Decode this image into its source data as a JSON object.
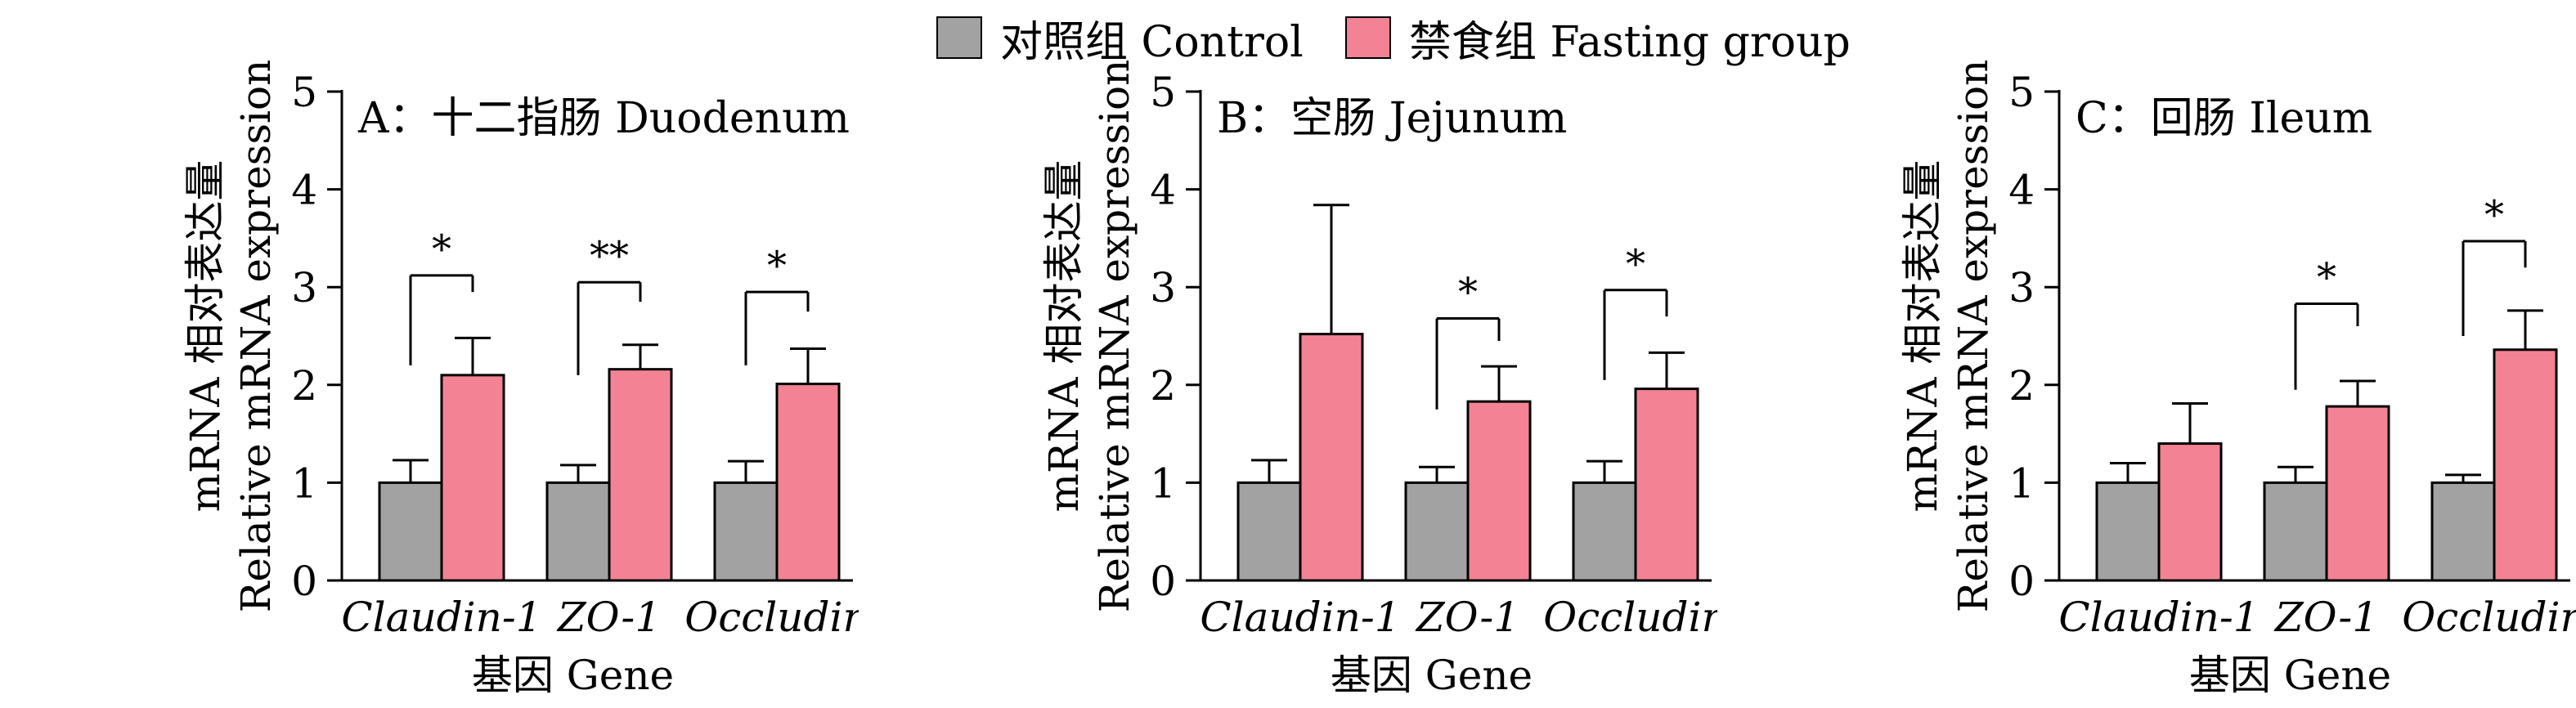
{
  "legend": {
    "control_label": "对照组 Control",
    "fasting_label": "禁食组 Fasting group"
  },
  "colors": {
    "control": "#a2a2a2",
    "fasting": "#f38394",
    "stroke": "#000000"
  },
  "chart_data": [
    {
      "type": "bar",
      "panel_label": "A：十二指肠 Duodenum",
      "ylabel_cn": "mRNA 相对表达量",
      "ylabel_en": "Relative mRNA expression",
      "xlabel": "基因 Gene",
      "ylim": [
        0,
        5
      ],
      "yticks": [
        "0",
        "1",
        "2",
        "3",
        "4",
        "5"
      ],
      "categories": [
        "Claudin-1",
        "ZO-1",
        "Occludin"
      ],
      "series": [
        {
          "name": "对照组 Control",
          "values": [
            1.0,
            1.0,
            1.0
          ],
          "errors": [
            0.23,
            0.18,
            0.22
          ]
        },
        {
          "name": "禁食组 Fasting group",
          "values": [
            2.1,
            2.16,
            2.01
          ],
          "errors": [
            0.38,
            0.25,
            0.36
          ]
        }
      ],
      "significance": [
        {
          "category_index": 0,
          "label": "*",
          "level": 3.12,
          "left_bottom": 2.2,
          "right_bottom": 2.95
        },
        {
          "category_index": 1,
          "label": "**",
          "level": 3.05,
          "left_bottom": 2.1,
          "right_bottom": 2.85
        },
        {
          "category_index": 2,
          "label": "*",
          "level": 2.95,
          "left_bottom": 2.2,
          "right_bottom": 2.75
        }
      ]
    },
    {
      "type": "bar",
      "panel_label": "B：空肠 Jejunum",
      "ylabel_cn": "mRNA 相对表达量",
      "ylabel_en": "Relative mRNA expression",
      "xlabel": "基因 Gene",
      "ylim": [
        0,
        5
      ],
      "yticks": [
        "0",
        "1",
        "2",
        "3",
        "4",
        "5"
      ],
      "categories": [
        "Claudin-1",
        "ZO-1",
        "Occludin"
      ],
      "series": [
        {
          "name": "对照组 Control",
          "values": [
            1.0,
            1.0,
            1.0
          ],
          "errors": [
            0.23,
            0.16,
            0.22
          ]
        },
        {
          "name": "禁食组 Fasting group",
          "values": [
            2.52,
            1.83,
            1.96
          ],
          "errors": [
            1.32,
            0.36,
            0.37
          ]
        }
      ],
      "significance": [
        {
          "category_index": 1,
          "label": "*",
          "level": 2.68,
          "left_bottom": 1.75,
          "right_bottom": 2.45
        },
        {
          "category_index": 2,
          "label": "*",
          "level": 2.97,
          "left_bottom": 2.05,
          "right_bottom": 2.7
        }
      ]
    },
    {
      "type": "bar",
      "panel_label": "C：回肠 Ileum",
      "ylabel_cn": "mRNA 相对表达量",
      "ylabel_en": "Relative mRNA expression",
      "xlabel": "基因 Gene",
      "ylim": [
        0,
        5
      ],
      "yticks": [
        "0",
        "1",
        "2",
        "3",
        "4",
        "5"
      ],
      "categories": [
        "Claudin-1",
        "ZO-1",
        "Occludin"
      ],
      "series": [
        {
          "name": "对照组 Control",
          "values": [
            1.0,
            1.0,
            1.0
          ],
          "errors": [
            0.2,
            0.16,
            0.08
          ]
        },
        {
          "name": "禁食组 Fasting group",
          "values": [
            1.4,
            1.78,
            2.36
          ],
          "errors": [
            0.41,
            0.26,
            0.4
          ]
        }
      ],
      "significance": [
        {
          "category_index": 1,
          "label": "*",
          "level": 2.83,
          "left_bottom": 1.95,
          "right_bottom": 2.6
        },
        {
          "category_index": 2,
          "label": "*",
          "level": 3.47,
          "left_bottom": 2.5,
          "right_bottom": 3.2
        }
      ]
    }
  ]
}
